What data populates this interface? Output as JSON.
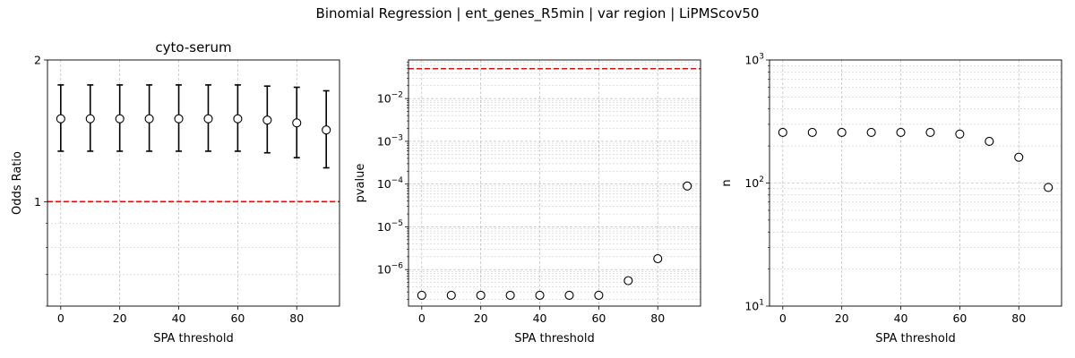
{
  "figure_title": "Binomial Regression | ent_genes_R5min | var region | LiPMScov50",
  "colors": {
    "points": "#000000",
    "reference_line": "#ff0000",
    "grid": "#b0b0b0"
  },
  "chart_data": [
    {
      "type": "scatter",
      "title": "cyto-serum",
      "xlabel": "SPA threshold",
      "ylabel": "Odds Ratio",
      "y_scale": "log",
      "xlim": [
        -4.5,
        94.5
      ],
      "ylim": [
        0.6,
        2.0
      ],
      "x_ticks": [
        0,
        20,
        40,
        60,
        80
      ],
      "y_ticks": [
        {
          "value": 1,
          "label": "1"
        },
        {
          "value": 2,
          "label": "2"
        }
      ],
      "grid": true,
      "reference_line": 1,
      "x": [
        0,
        10,
        20,
        30,
        40,
        50,
        60,
        70,
        80,
        90
      ],
      "y": [
        1.5,
        1.5,
        1.5,
        1.5,
        1.5,
        1.5,
        1.5,
        1.49,
        1.47,
        1.42
      ],
      "y_lower": [
        1.28,
        1.28,
        1.28,
        1.28,
        1.28,
        1.28,
        1.28,
        1.27,
        1.24,
        1.18
      ],
      "y_upper": [
        1.77,
        1.77,
        1.77,
        1.77,
        1.77,
        1.77,
        1.77,
        1.76,
        1.75,
        1.72
      ]
    },
    {
      "type": "scatter",
      "title": "",
      "xlabel": "SPA threshold",
      "ylabel": "pvalue",
      "y_scale": "log",
      "xlim": [
        -4.5,
        94.5
      ],
      "ylim": [
        1.4e-07,
        0.08
      ],
      "x_ticks": [
        0,
        20,
        40,
        60,
        80
      ],
      "y_ticks": [
        {
          "value": 1e-06,
          "label": "10",
          "exp": "−6"
        },
        {
          "value": 1e-05,
          "label": "10",
          "exp": "−5"
        },
        {
          "value": 0.0001,
          "label": "10",
          "exp": "−4"
        },
        {
          "value": 0.001,
          "label": "10",
          "exp": "−3"
        },
        {
          "value": 0.01,
          "label": "10",
          "exp": "−2"
        }
      ],
      "grid": true,
      "reference_line": 0.05,
      "x": [
        0,
        10,
        20,
        30,
        40,
        50,
        60,
        70,
        80,
        90
      ],
      "y": [
        2.5e-07,
        2.5e-07,
        2.5e-07,
        2.5e-07,
        2.5e-07,
        2.5e-07,
        2.5e-07,
        5.5e-07,
        1.8e-06,
        9e-05
      ]
    },
    {
      "type": "scatter",
      "title": "",
      "xlabel": "SPA threshold",
      "ylabel": "n",
      "y_scale": "log",
      "xlim": [
        -4.5,
        94.5
      ],
      "ylim": [
        10,
        1000
      ],
      "x_ticks": [
        0,
        20,
        40,
        60,
        80
      ],
      "y_ticks": [
        {
          "value": 10,
          "label": "10",
          "exp": "1"
        },
        {
          "value": 100,
          "label": "10",
          "exp": "2"
        },
        {
          "value": 1000,
          "label": "10",
          "exp": "3"
        }
      ],
      "grid": true,
      "x": [
        0,
        10,
        20,
        30,
        40,
        50,
        60,
        70,
        80,
        90
      ],
      "y": [
        258,
        258,
        258,
        258,
        258,
        258,
        250,
        218,
        162,
        92
      ]
    }
  ]
}
